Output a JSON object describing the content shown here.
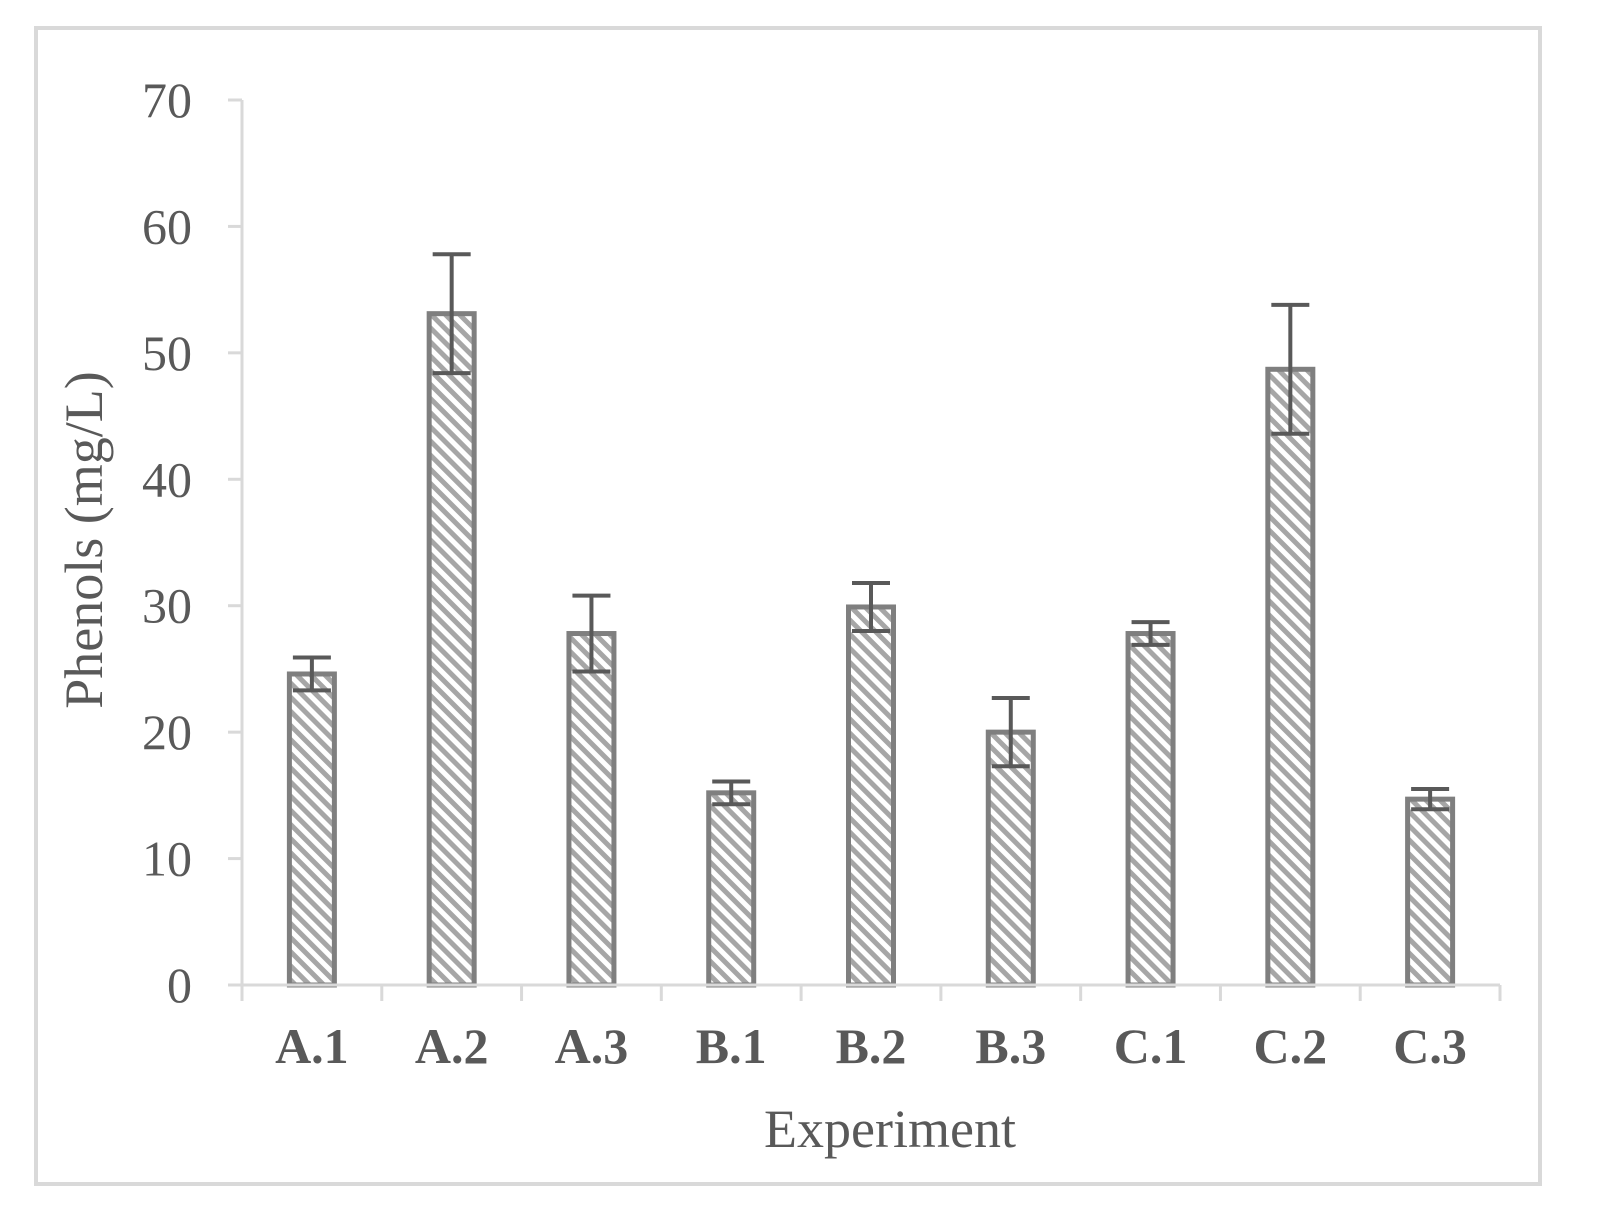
{
  "chart_data": {
    "type": "bar",
    "title": "",
    "xlabel": "Experiment",
    "ylabel": "Phenols (mg/L)",
    "ylim": [
      0,
      70
    ],
    "yticks": [
      0,
      10,
      20,
      30,
      40,
      50,
      60,
      70
    ],
    "categories": [
      "A.1",
      "A.2",
      "A.3",
      "B.1",
      "B.2",
      "B.3",
      "C.1",
      "C.2",
      "C.3"
    ],
    "values": [
      24.6,
      53.1,
      27.8,
      15.2,
      29.9,
      20.0,
      27.8,
      48.7,
      14.7
    ],
    "error": [
      1.3,
      4.7,
      3.0,
      0.9,
      1.9,
      2.7,
      0.9,
      5.1,
      0.8
    ],
    "legend": "none",
    "grid": false,
    "bar_fill": "diagonal hatch",
    "colors": {
      "bar_stroke": "#7f7f7f",
      "hatch": "#a6a6a6",
      "error_bar": "#595959",
      "axis": "#d9d9d9",
      "text": "#595959",
      "frame": "#d9d9d9"
    }
  }
}
